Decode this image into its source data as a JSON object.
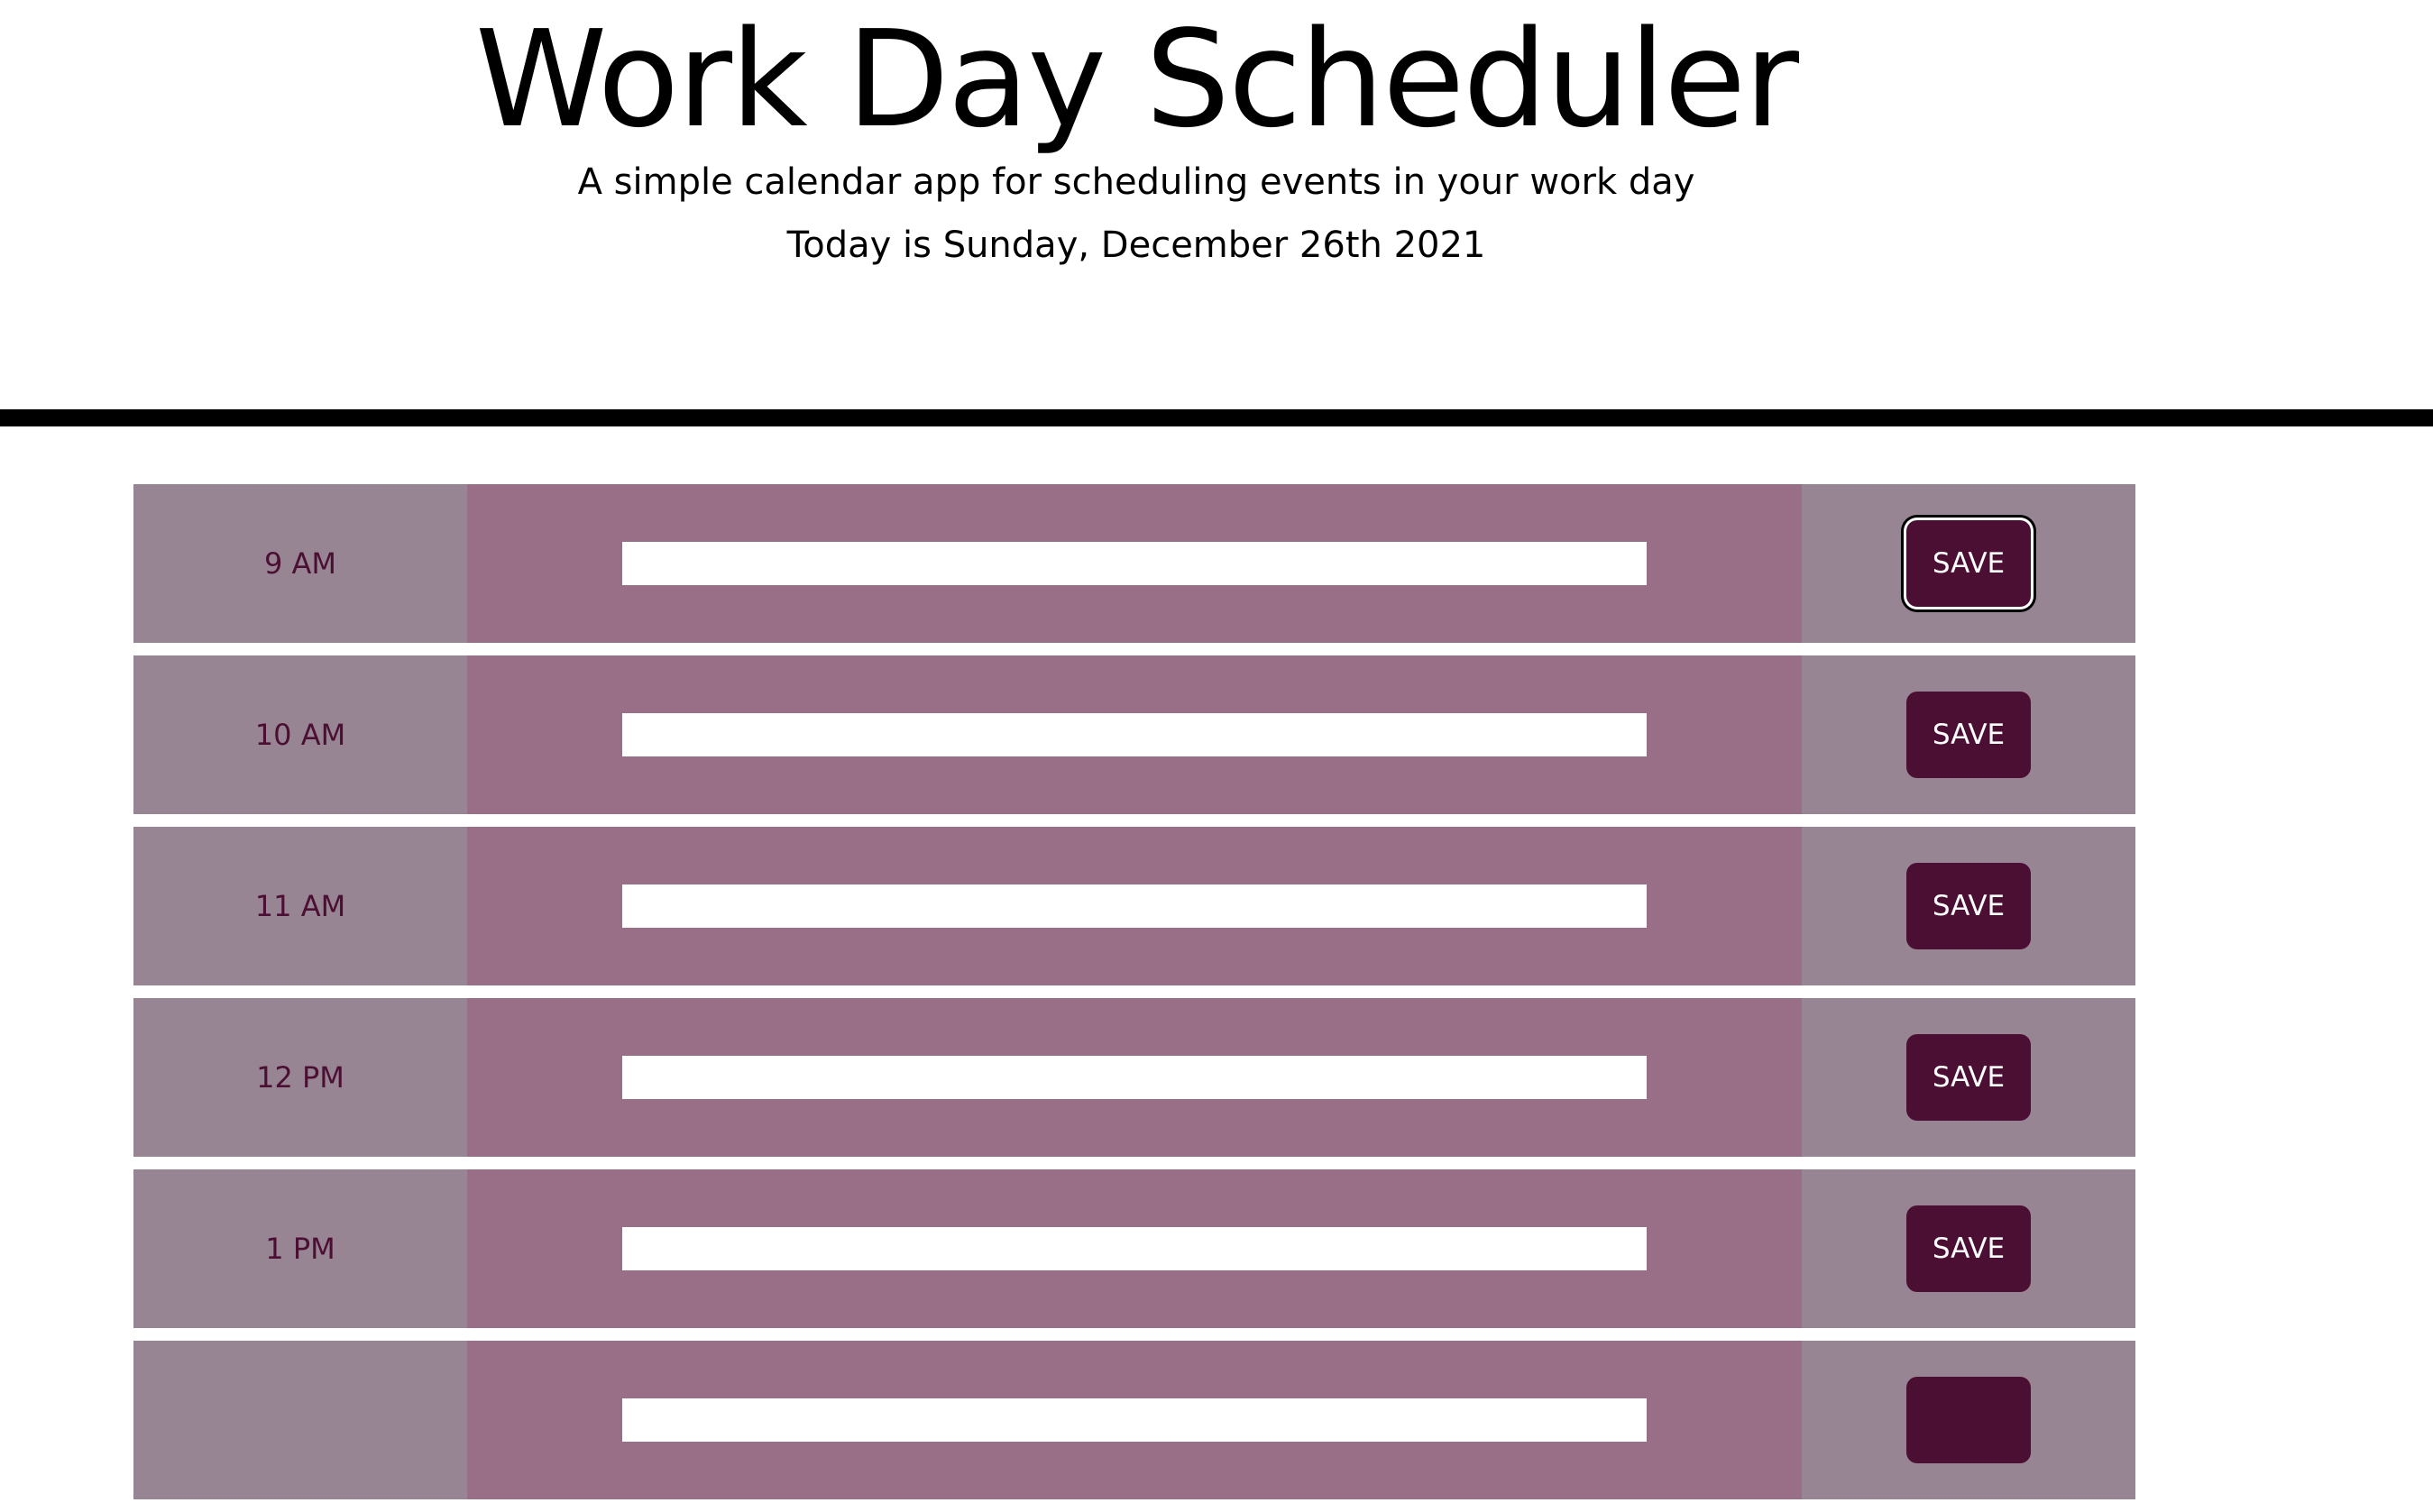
{
  "header": {
    "title": "Work Day Scheduler",
    "subtitle": "A simple calendar app for scheduling events in your work day",
    "date": "Today is Sunday, December 26th 2021"
  },
  "rows": [
    {
      "hour": "9 AM",
      "event": "",
      "save_label": "SAVE"
    },
    {
      "hour": "10 AM",
      "event": "",
      "save_label": "SAVE"
    },
    {
      "hour": "11 AM",
      "event": "",
      "save_label": "SAVE"
    },
    {
      "hour": "12 PM",
      "event": "",
      "save_label": "SAVE"
    },
    {
      "hour": "1 PM",
      "event": "",
      "save_label": "SAVE"
    },
    {
      "hour": "",
      "event": "",
      "save_label": ""
    }
  ],
  "colors": {
    "hour_cell": "#988594",
    "event_cell": "#986f86",
    "hour_text": "#4b0f33",
    "save_button": "#4b0f33",
    "save_text": "#ffffff",
    "divider": "#000000"
  }
}
